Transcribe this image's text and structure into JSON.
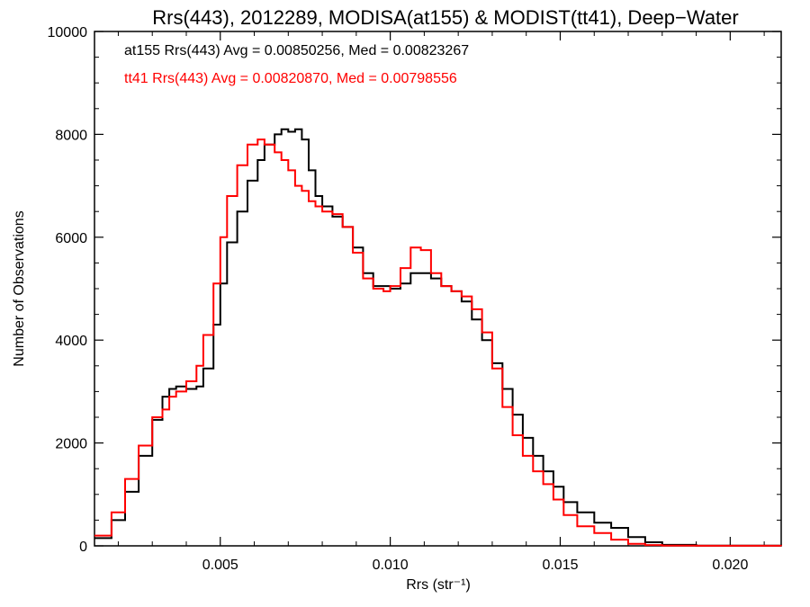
{
  "chart_data": {
    "type": "line",
    "title": "Rrs(443), 2012289, MODISA(at155) & MODIST(tt41), Deep−Water",
    "xlabel": "Rrs (str⁻¹)",
    "ylabel": "Number of Observations",
    "xlim": [
      0.0013,
      0.0215
    ],
    "ylim": [
      0,
      10000
    ],
    "x_ticks": [
      0.005,
      0.01,
      0.015,
      0.02
    ],
    "x_tick_labels": [
      "0.005",
      "0.010",
      "0.015",
      "0.020"
    ],
    "y_ticks": [
      0,
      2000,
      4000,
      6000,
      8000,
      10000
    ],
    "y_tick_labels": [
      "0",
      "2000",
      "4000",
      "6000",
      "8000",
      "10000"
    ],
    "grid": false,
    "step": true,
    "annotations": [
      {
        "text": "at155 Rrs(443) Avg = 0.00850256, Med = 0.00823267",
        "color": "#000000"
      },
      {
        "text": "tt41 Rrs(443) Avg = 0.00820870, Med = 0.00798556",
        "color": "#ff0000"
      }
    ],
    "series": [
      {
        "color": "#000000",
        "x": [
          0.0013,
          0.0018,
          0.0022,
          0.0026,
          0.003,
          0.0033,
          0.0035,
          0.0037,
          0.004,
          0.0043,
          0.0045,
          0.0048,
          0.005,
          0.0052,
          0.0055,
          0.0058,
          0.0061,
          0.0063,
          0.0066,
          0.0068,
          0.007,
          0.0072,
          0.0074,
          0.0076,
          0.0078,
          0.008,
          0.0083,
          0.0086,
          0.0089,
          0.0092,
          0.0095,
          0.0098,
          0.01,
          0.0103,
          0.0106,
          0.0109,
          0.0112,
          0.0115,
          0.0118,
          0.0121,
          0.0124,
          0.0127,
          0.013,
          0.0133,
          0.0136,
          0.0139,
          0.0142,
          0.0145,
          0.0148,
          0.0151,
          0.0155,
          0.016,
          0.0165,
          0.017,
          0.0175,
          0.018,
          0.019,
          0.0215
        ],
        "values": [
          150,
          500,
          1050,
          1750,
          2450,
          2900,
          3050,
          3100,
          3050,
          3100,
          3450,
          4300,
          5100,
          5900,
          6500,
          7100,
          7500,
          7800,
          8000,
          8100,
          8050,
          8100,
          7900,
          7300,
          6800,
          6600,
          6400,
          6200,
          5800,
          5300,
          5050,
          5050,
          5000,
          5100,
          5300,
          5300,
          5200,
          5050,
          4950,
          4750,
          4400,
          4000,
          3550,
          3050,
          2550,
          2100,
          1750,
          1450,
          1150,
          850,
          650,
          450,
          350,
          170,
          70,
          20,
          5,
          0
        ]
      },
      {
        "color": "#ff0000",
        "x": [
          0.0013,
          0.0018,
          0.0022,
          0.0026,
          0.003,
          0.0033,
          0.0035,
          0.0037,
          0.004,
          0.0043,
          0.0045,
          0.0048,
          0.005,
          0.0052,
          0.0055,
          0.0058,
          0.0061,
          0.0063,
          0.0066,
          0.0068,
          0.007,
          0.0072,
          0.0074,
          0.0076,
          0.0078,
          0.008,
          0.0083,
          0.0086,
          0.0089,
          0.0092,
          0.0095,
          0.0098,
          0.01,
          0.0103,
          0.0106,
          0.0109,
          0.0112,
          0.0115,
          0.0118,
          0.0121,
          0.0124,
          0.0127,
          0.013,
          0.0133,
          0.0136,
          0.0139,
          0.0142,
          0.0145,
          0.0148,
          0.0151,
          0.0155,
          0.016,
          0.0165,
          0.017,
          0.0175,
          0.018,
          0.019,
          0.0215
        ],
        "values": [
          200,
          650,
          1300,
          1950,
          2500,
          2650,
          2900,
          3000,
          3200,
          3500,
          4100,
          5100,
          6000,
          6800,
          7400,
          7800,
          7900,
          7800,
          7650,
          7500,
          7300,
          7000,
          6900,
          6700,
          6600,
          6500,
          6450,
          6200,
          5700,
          5200,
          5000,
          4950,
          5050,
          5400,
          5800,
          5750,
          5300,
          5050,
          4950,
          4850,
          4600,
          4150,
          3450,
          2700,
          2150,
          1750,
          1450,
          1200,
          900,
          600,
          380,
          250,
          120,
          40,
          15,
          5,
          2,
          0
        ]
      }
    ]
  }
}
